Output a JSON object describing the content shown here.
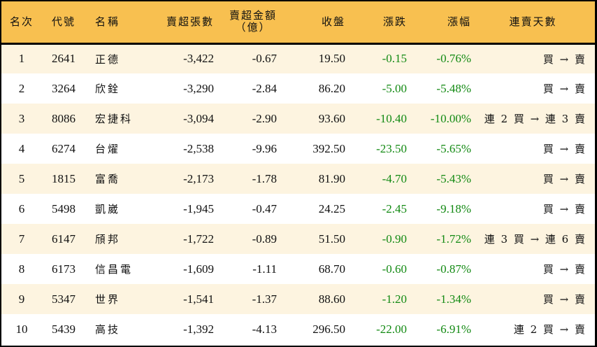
{
  "table": {
    "headers": {
      "rank": "名次",
      "code": "代號",
      "name": "名稱",
      "net_sell_volume": "賣超張數",
      "net_sell_amount_line1": "賣超金額",
      "net_sell_amount_line2": "（億）",
      "close": "收盤",
      "change": "漲跌",
      "change_pct": "漲幅",
      "streak_days": "連賣天數"
    },
    "colors": {
      "header_bg": "#f8c050",
      "row_alt_bg": "#fdf4e0",
      "row_bg": "#ffffff",
      "down_color": "#138a13"
    },
    "rows": [
      {
        "rank": "1",
        "code": "2641",
        "name": "正德",
        "volume": "-3,422",
        "amount": "-0.67",
        "close": "19.50",
        "change": "-0.15",
        "pct": "-0.76%",
        "streak": "買 → 賣"
      },
      {
        "rank": "2",
        "code": "3264",
        "name": "欣銓",
        "volume": "-3,290",
        "amount": "-2.84",
        "close": "86.20",
        "change": "-5.00",
        "pct": "-5.48%",
        "streak": "買 → 賣"
      },
      {
        "rank": "3",
        "code": "8086",
        "name": "宏捷科",
        "volume": "-3,094",
        "amount": "-2.90",
        "close": "93.60",
        "change": "-10.40",
        "pct": "-10.00%",
        "streak": "連 2 買 → 連 3 賣"
      },
      {
        "rank": "4",
        "code": "6274",
        "name": "台燿",
        "volume": "-2,538",
        "amount": "-9.96",
        "close": "392.50",
        "change": "-23.50",
        "pct": "-5.65%",
        "streak": "買 → 賣"
      },
      {
        "rank": "5",
        "code": "1815",
        "name": "富喬",
        "volume": "-2,173",
        "amount": "-1.78",
        "close": "81.90",
        "change": "-4.70",
        "pct": "-5.43%",
        "streak": "買 → 賣"
      },
      {
        "rank": "6",
        "code": "5498",
        "name": "凱崴",
        "volume": "-1,945",
        "amount": "-0.47",
        "close": "24.25",
        "change": "-2.45",
        "pct": "-9.18%",
        "streak": "買 → 賣"
      },
      {
        "rank": "7",
        "code": "6147",
        "name": "頎邦",
        "volume": "-1,722",
        "amount": "-0.89",
        "close": "51.50",
        "change": "-0.90",
        "pct": "-1.72%",
        "streak": "連 3 買 → 連 6 賣"
      },
      {
        "rank": "8",
        "code": "6173",
        "name": "信昌電",
        "volume": "-1,609",
        "amount": "-1.11",
        "close": "68.70",
        "change": "-0.60",
        "pct": "-0.87%",
        "streak": "買 → 賣"
      },
      {
        "rank": "9",
        "code": "5347",
        "name": "世界",
        "volume": "-1,541",
        "amount": "-1.37",
        "close": "88.60",
        "change": "-1.20",
        "pct": "-1.34%",
        "streak": "買 → 賣"
      },
      {
        "rank": "10",
        "code": "5439",
        "name": "高技",
        "volume": "-1,392",
        "amount": "-4.13",
        "close": "296.50",
        "change": "-22.00",
        "pct": "-6.91%",
        "streak": "連 2 買 → 賣"
      }
    ]
  }
}
